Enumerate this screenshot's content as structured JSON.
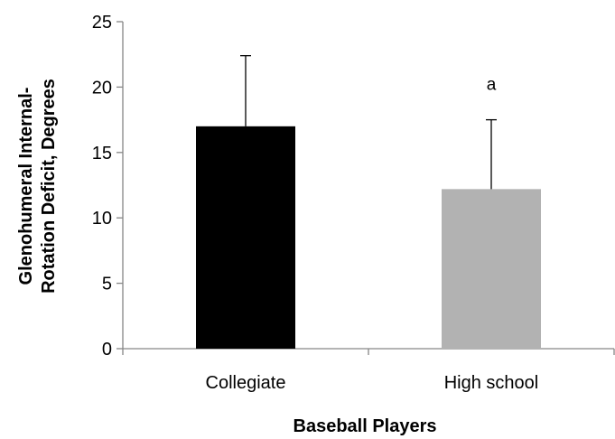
{
  "chart_data": {
    "type": "bar",
    "categories": [
      "Collegiate",
      "High school"
    ],
    "values": [
      17.0,
      12.2
    ],
    "error_plus": [
      5.4,
      5.3
    ],
    "ylim": [
      0,
      25
    ],
    "yticks": [
      0,
      5,
      10,
      15,
      20,
      25
    ],
    "xlabel": "Baseball Players",
    "ylabel_lines": [
      "Glenohumeral Internal-",
      "Rotation Deficit, Degrees"
    ],
    "bar_colors": [
      "#000000",
      "#b2b2b2"
    ],
    "annotations": [
      {
        "category": "High school",
        "text": "a"
      }
    ],
    "grid": false,
    "legend": "none"
  }
}
